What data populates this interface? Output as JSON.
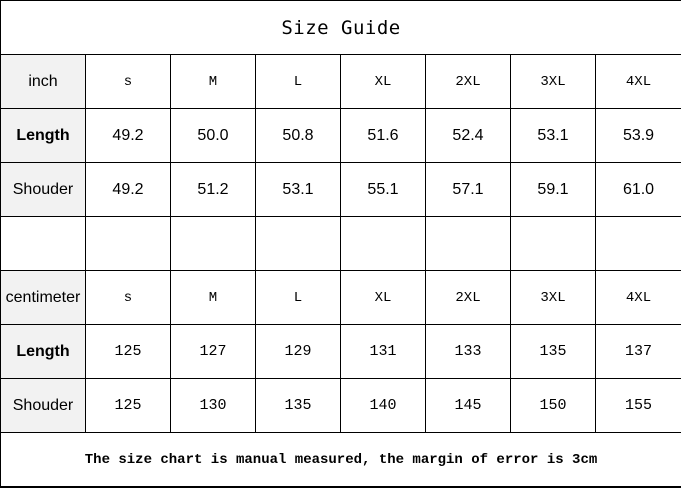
{
  "title": "Size Guide",
  "inch": {
    "label": "inch",
    "sizes": [
      "s",
      "M",
      "L",
      "XL",
      "2XL",
      "3XL",
      "4XL"
    ],
    "rows": [
      {
        "label": "Length",
        "values": [
          "49.2",
          "50.0",
          "50.8",
          "51.6",
          "52.4",
          "53.1",
          "53.9"
        ]
      },
      {
        "label": "Shouder",
        "values": [
          "49.2",
          "51.2",
          "53.1",
          "55.1",
          "57.1",
          "59.1",
          "61.0"
        ]
      }
    ]
  },
  "centimeter": {
    "label": "centimeter",
    "sizes": [
      "s",
      "M",
      "L",
      "XL",
      "2XL",
      "3XL",
      "4XL"
    ],
    "rows": [
      {
        "label": "Length",
        "values": [
          "125",
          "127",
          "129",
          "131",
          "133",
          "135",
          "137"
        ]
      },
      {
        "label": "Shouder",
        "values": [
          "125",
          "130",
          "135",
          "140",
          "145",
          "150",
          "155"
        ]
      }
    ]
  },
  "note": "The size chart is manual measured, the margin of error is 3cm"
}
